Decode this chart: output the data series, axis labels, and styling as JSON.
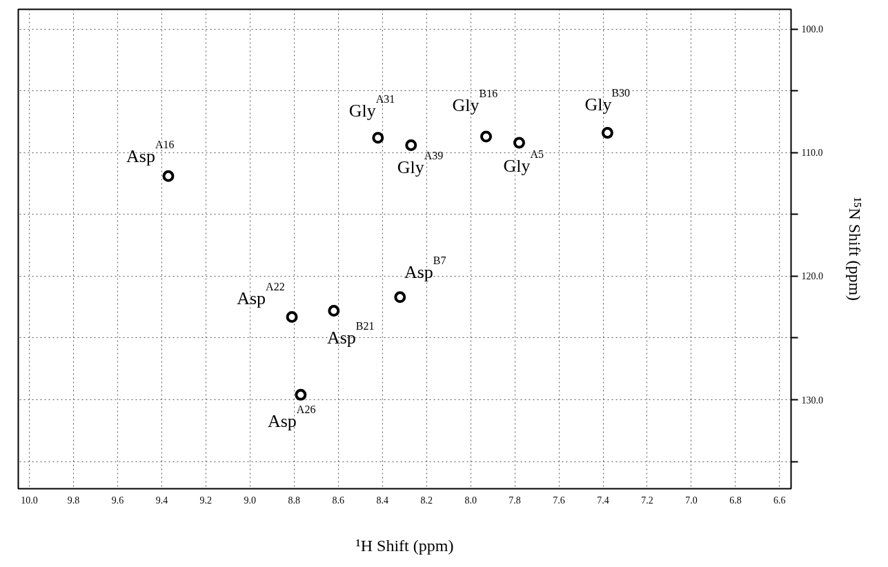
{
  "chart_data": {
    "type": "scatter",
    "xlabel": "¹H Shift (ppm)",
    "ylabel": "¹⁵N Shift (ppm)",
    "x": [
      9.37,
      8.42,
      8.27,
      7.93,
      7.78,
      7.38,
      8.32,
      8.81,
      8.62,
      8.77
    ],
    "series": [
      {
        "color": "#000000",
        "values": [
          111.9,
          108.8,
          109.4,
          108.7,
          109.2,
          108.4,
          121.7,
          123.3,
          122.8,
          129.6
        ]
      }
    ],
    "marker": "circle",
    "grid": true,
    "xlim": [
      10.05,
      6.548
    ],
    "ylim": [
      137.2,
      98.4
    ],
    "xticks": [
      {
        "value": 10.0,
        "label": "10.0"
      },
      9.8,
      9.6,
      9.4,
      9.2,
      {
        "value": 9.0,
        "label": "9.0"
      },
      8.8,
      8.6,
      8.4,
      8.2,
      {
        "value": 8.0,
        "label": "8.0"
      },
      7.8,
      7.6,
      7.4,
      7.2,
      {
        "value": 7.0,
        "label": "7.0"
      },
      6.8,
      6.6
    ],
    "yticks": [
      {
        "value": 100,
        "label": "100.0"
      },
      {
        "value": 105,
        "label": null
      },
      {
        "value": 110,
        "label": "110.0"
      },
      {
        "value": 115,
        "label": null
      },
      {
        "value": 120,
        "label": "120.0"
      },
      {
        "value": 125,
        "label": null
      },
      {
        "value": 130,
        "label": "130.0"
      },
      {
        "value": 135,
        "label": null
      }
    ],
    "annotations": [
      {
        "text": "Asp$^{A16}$",
        "x": 9.37,
        "y": 111.9
      },
      {
        "text": "Gly$^{A31}$",
        "x": 8.42,
        "y": 108.8
      },
      {
        "text": "Gly$^{A39}$",
        "x": 8.27,
        "y": 109.4
      },
      {
        "text": "Gly$^{B16}$",
        "x": 7.93,
        "y": 108.7
      },
      {
        "text": "Gly$^{A5}$",
        "x": 7.78,
        "y": 109.2
      },
      {
        "text": "Gly$^{B30}$",
        "x": 7.38,
        "y": 108.4
      },
      {
        "text": "Asp$^{B7}$",
        "x": 8.32,
        "y": 121.7
      },
      {
        "text": "Asp$^{A22}$",
        "x": 8.81,
        "y": 123.3
      },
      {
        "text": "Asp$^{B21}$",
        "x": 8.62,
        "y": 122.8
      },
      {
        "text": "Asp$^{A26}$",
        "x": 8.77,
        "y": 129.6
      }
    ]
  }
}
